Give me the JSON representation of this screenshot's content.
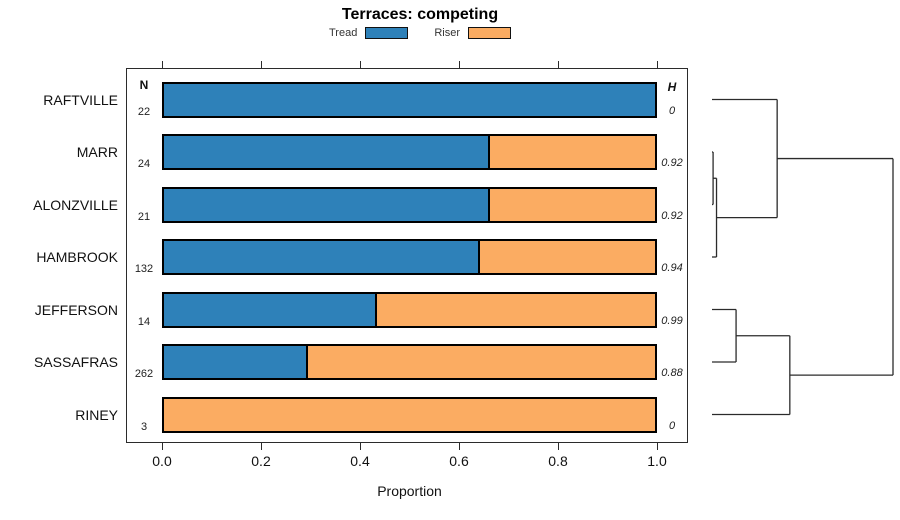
{
  "title": "Terraces: competing",
  "legend": {
    "items": [
      {
        "label": "Tread",
        "color": "#2E81B9"
      },
      {
        "label": "Riser",
        "color": "#FBAC62"
      }
    ]
  },
  "table": {
    "n_header": "N",
    "h_header": "H"
  },
  "axis": {
    "label": "Proportion",
    "ticks": [
      "0.0",
      "0.2",
      "0.4",
      "0.6",
      "0.8",
      "1.0"
    ],
    "tick_values": [
      0,
      0.2,
      0.4,
      0.6,
      0.8,
      1.0
    ]
  },
  "chart_data": {
    "type": "bar",
    "orientation": "horizontal",
    "stacked": true,
    "title": "Terraces: competing",
    "xlabel": "Proportion",
    "xlim": [
      0,
      1
    ],
    "legend_position": "top",
    "categories": [
      "RAFTVILLE",
      "MARR",
      "ALONZVILLE",
      "HAMBROOK",
      "JEFFERSON",
      "SASSAFRAS",
      "RINEY"
    ],
    "sample_sizes_N": [
      22,
      24,
      21,
      132,
      14,
      262,
      3
    ],
    "heterogeneity_H": [
      "0",
      "0.92",
      "0.92",
      "0.94",
      "0.99",
      "0.88",
      "0"
    ],
    "series": [
      {
        "name": "Tread",
        "color": "#2E81B9",
        "values": [
          1.0,
          0.66,
          0.66,
          0.64,
          0.43,
          0.29,
          0.0
        ]
      },
      {
        "name": "Riser",
        "color": "#FBAC62",
        "values": [
          0.0,
          0.34,
          0.34,
          0.36,
          0.57,
          0.71,
          1.0
        ]
      }
    ],
    "dendrogram": {
      "position": "right",
      "tree": {
        "height": 1.0,
        "children": [
          {
            "height": 0.36,
            "children": [
              {
                "leaf": "RAFTVILLE"
              },
              {
                "height": 0.025,
                "children": [
                  {
                    "height": 0.006,
                    "children": [
                      {
                        "leaf": "MARR"
                      },
                      {
                        "leaf": "ALONZVILLE"
                      }
                    ]
                  },
                  {
                    "leaf": "HAMBROOK"
                  }
                ]
              }
            ]
          },
          {
            "height": 0.43,
            "children": [
              {
                "height": 0.133,
                "children": [
                  {
                    "leaf": "JEFFERSON"
                  },
                  {
                    "leaf": "SASSAFRAS"
                  }
                ]
              },
              {
                "leaf": "RINEY"
              }
            ]
          }
        ]
      }
    }
  }
}
